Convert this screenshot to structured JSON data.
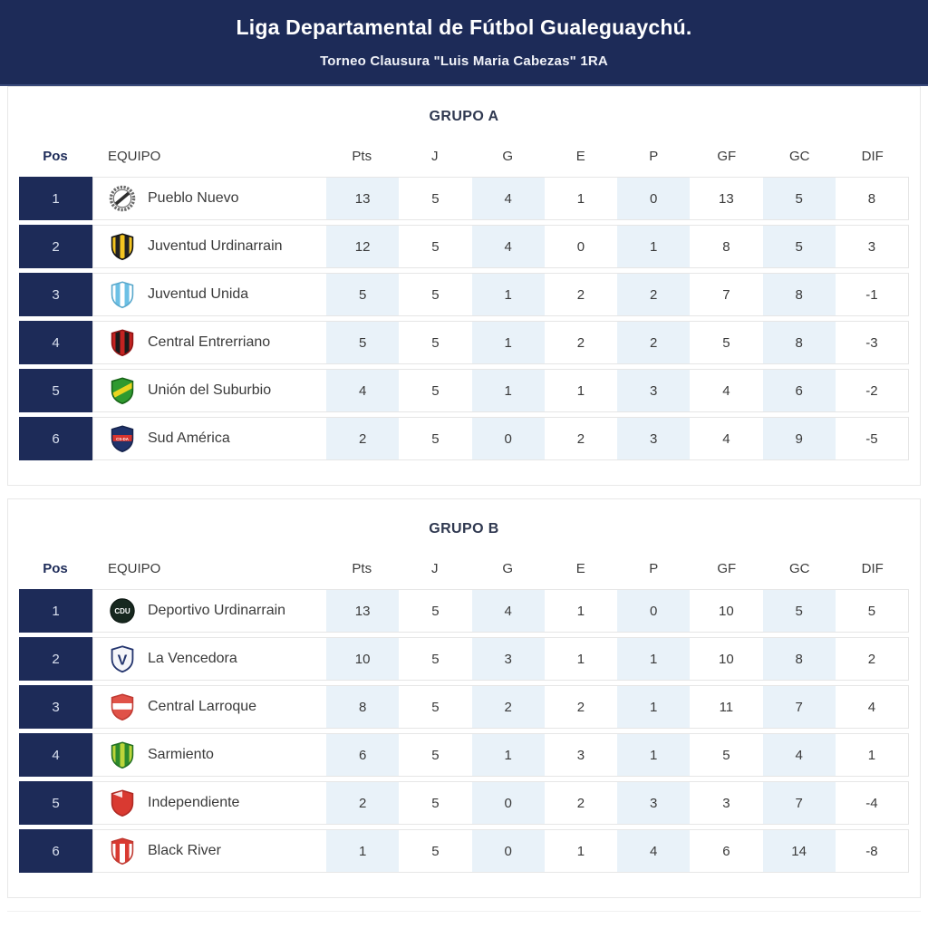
{
  "header": {
    "title": "Liga Departamental de Fútbol Gualeguaychú.",
    "subtitle": "Torneo Clausura \"Luis Maria Cabezas\" 1RA"
  },
  "colors": {
    "navy": "#1d2b58",
    "column_highlight": "#e9f2f9",
    "row_border": "#e6e6e6",
    "text": "#3a3a3a"
  },
  "columns": [
    "Pos",
    "EQUIPO",
    "Pts",
    "J",
    "G",
    "E",
    "P",
    "GF",
    "GC",
    "DIF"
  ],
  "stat_keys": [
    "pts",
    "j",
    "g",
    "e",
    "p",
    "gf",
    "gc",
    "dif"
  ],
  "chart_data": {
    "type": "table",
    "title": "Liga Departamental de Fútbol Gualeguaychú.",
    "subtitle": "Torneo Clausura \"Luis Maria Cabezas\" 1RA",
    "columns": [
      "Pos",
      "EQUIPO",
      "Pts",
      "J",
      "G",
      "E",
      "P",
      "GF",
      "GC",
      "DIF"
    ],
    "groups": [
      {
        "title": "GRUPO A",
        "rows": [
          [
            1,
            "Pueblo Nuevo",
            13,
            5,
            4,
            1,
            0,
            13,
            5,
            8
          ],
          [
            2,
            "Juventud Urdinarrain",
            12,
            5,
            4,
            0,
            1,
            8,
            5,
            3
          ],
          [
            3,
            "Juventud Unida",
            5,
            5,
            1,
            2,
            2,
            7,
            8,
            -1
          ],
          [
            4,
            "Central Entrerriano",
            5,
            5,
            1,
            2,
            2,
            5,
            8,
            -3
          ],
          [
            5,
            "Unión del Suburbio",
            4,
            5,
            1,
            1,
            3,
            4,
            6,
            -2
          ],
          [
            6,
            "Sud América",
            2,
            5,
            0,
            2,
            3,
            4,
            9,
            -5
          ]
        ]
      },
      {
        "title": "GRUPO B",
        "rows": [
          [
            1,
            "Deportivo Urdinarrain",
            13,
            5,
            4,
            1,
            0,
            10,
            5,
            5
          ],
          [
            2,
            "La Vencedora",
            10,
            5,
            3,
            1,
            1,
            10,
            8,
            2
          ],
          [
            3,
            "Central Larroque",
            8,
            5,
            2,
            2,
            1,
            11,
            7,
            4
          ],
          [
            4,
            "Sarmiento",
            6,
            5,
            1,
            3,
            1,
            5,
            4,
            1
          ],
          [
            5,
            "Independiente",
            2,
            5,
            0,
            2,
            3,
            3,
            7,
            -4
          ],
          [
            6,
            "Black River",
            1,
            5,
            0,
            1,
            4,
            6,
            14,
            -8
          ]
        ]
      }
    ]
  },
  "groups": [
    {
      "title": "GRUPO A",
      "rows": [
        {
          "pos": 1,
          "team": "Pueblo Nuevo",
          "crest": {
            "icon": "pueblo-nuevo-crest",
            "type": "wreath",
            "base": "#ffffff",
            "accent": "#2e2e2e",
            "border": "#6b6b6b"
          },
          "stats": [
            13,
            5,
            4,
            1,
            0,
            13,
            5,
            8
          ]
        },
        {
          "pos": 2,
          "team": "Juventud Urdinarrain",
          "crest": {
            "icon": "juventud-urdinarrain-crest",
            "type": "vstripes",
            "base": "#f3c420",
            "accent": "#222222",
            "border": "#111111"
          },
          "stats": [
            12,
            5,
            4,
            0,
            1,
            8,
            5,
            3
          ]
        },
        {
          "pos": 3,
          "team": "Juventud Unida",
          "crest": {
            "icon": "juventud-unida-crest",
            "type": "vstripes",
            "base": "#ffffff",
            "accent": "#6cc0e5",
            "border": "#58a8cc"
          },
          "stats": [
            5,
            5,
            1,
            2,
            2,
            7,
            8,
            -1
          ]
        },
        {
          "pos": 4,
          "team": "Central Entrerriano",
          "crest": {
            "icon": "central-entrerriano-crest",
            "type": "vstripes",
            "base": "#c42321",
            "accent": "#1a1a1a",
            "border": "#8f1414"
          },
          "stats": [
            5,
            5,
            1,
            2,
            2,
            5,
            8,
            -3
          ]
        },
        {
          "pos": 5,
          "team": "Unión del Suburbio",
          "crest": {
            "icon": "union-del-suburbio-crest",
            "type": "diag",
            "base": "#2f9a2f",
            "accent": "#ead51f",
            "border": "#176317"
          },
          "stats": [
            4,
            5,
            1,
            1,
            3,
            4,
            6,
            -2
          ]
        },
        {
          "pos": 6,
          "team": "Sud América",
          "crest": {
            "icon": "sud-america-crest",
            "type": "hband",
            "base": "#20336b",
            "accent": "#d8342e",
            "border": "#16244d",
            "letters": "CS-DA",
            "letterColor": "#ffffff"
          },
          "stats": [
            2,
            5,
            0,
            2,
            3,
            4,
            9,
            -5
          ]
        }
      ]
    },
    {
      "title": "GRUPO B",
      "rows": [
        {
          "pos": 1,
          "team": "Deportivo Urdinarrain",
          "crest": {
            "icon": "deportivo-urdinarrain-crest",
            "type": "circle",
            "base": "#17281f",
            "accent": "#ffffff",
            "border": "#0c1712",
            "letters": "CDU"
          },
          "stats": [
            13,
            5,
            4,
            1,
            0,
            10,
            5,
            5
          ]
        },
        {
          "pos": 2,
          "team": "La Vencedora",
          "crest": {
            "icon": "la-vencedora-crest",
            "type": "letter",
            "base": "#f5f6fa",
            "accent": "#24356e",
            "border": "#24356e",
            "letters": "V"
          },
          "stats": [
            10,
            5,
            3,
            1,
            1,
            10,
            8,
            2
          ]
        },
        {
          "pos": 3,
          "team": "Central Larroque",
          "crest": {
            "icon": "central-larroque-crest",
            "type": "hband",
            "base": "#e05248",
            "accent": "#ffffff",
            "border": "#c03a32",
            "letters": ""
          },
          "stats": [
            8,
            5,
            2,
            2,
            1,
            11,
            7,
            4
          ]
        },
        {
          "pos": 4,
          "team": "Sarmiento",
          "crest": {
            "icon": "sarmiento-crest",
            "type": "vstripes",
            "base": "#bcd53a",
            "accent": "#2c8a2c",
            "border": "#237023"
          },
          "stats": [
            6,
            5,
            1,
            3,
            1,
            5,
            4,
            1
          ]
        },
        {
          "pos": 5,
          "team": "Independiente",
          "crest": {
            "icon": "independiente-crest",
            "type": "solid",
            "base": "#d93a31",
            "accent": "#ffffff",
            "border": "#b02a24"
          },
          "stats": [
            2,
            5,
            0,
            2,
            3,
            3,
            7,
            -4
          ]
        },
        {
          "pos": 6,
          "team": "Black River",
          "crest": {
            "icon": "black-river-crest",
            "type": "topband",
            "base": "#ffffff",
            "accent": "#d93a31",
            "border": "#c03a32"
          },
          "stats": [
            1,
            5,
            0,
            1,
            4,
            6,
            14,
            -8
          ]
        }
      ]
    }
  ]
}
